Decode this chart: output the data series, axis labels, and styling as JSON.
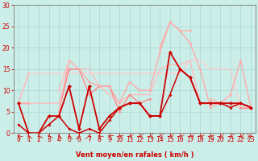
{
  "xlabel": "Vent moyen/en rafales ( km/h )",
  "xlim": [
    -0.5,
    23.5
  ],
  "ylim": [
    0,
    30
  ],
  "yticks": [
    0,
    5,
    10,
    15,
    20,
    25,
    30
  ],
  "xticks": [
    0,
    1,
    2,
    3,
    4,
    5,
    6,
    7,
    8,
    9,
    10,
    11,
    12,
    13,
    14,
    15,
    16,
    17,
    18,
    19,
    20,
    21,
    22,
    23
  ],
  "background_color": "#cceee8",
  "grid_color": "#aaddda",
  "series": [
    {
      "y": [
        7,
        0,
        0,
        4,
        4,
        11,
        1,
        11,
        1,
        4,
        6,
        7,
        7,
        4,
        4,
        19,
        15,
        13,
        7,
        7,
        7,
        7,
        7,
        6
      ],
      "color": "#cc0000",
      "lw": 1.3,
      "marker": "D",
      "ms": 2.5,
      "zorder": 5
    },
    {
      "y": [
        2,
        0,
        0,
        2,
        4,
        1,
        0,
        1,
        0,
        3,
        6,
        7,
        7,
        4,
        4,
        9,
        15,
        13,
        7,
        7,
        7,
        6,
        7,
        6
      ],
      "color": "#cc0000",
      "lw": 1.1,
      "marker": "D",
      "ms": 2.0,
      "zorder": 4
    },
    {
      "y": [
        7,
        7,
        null,
        null,
        5,
        15,
        15,
        9,
        11,
        11,
        5,
        9,
        7,
        8,
        null,
        null,
        null,
        null,
        null,
        7,
        7,
        null,
        6,
        6
      ],
      "color": "#ff8888",
      "lw": 1.0,
      "marker": "o",
      "ms": 2.0,
      "zorder": 3
    },
    {
      "y": [
        7,
        7,
        null,
        null,
        5,
        17,
        15,
        12,
        11,
        11,
        7,
        12,
        10,
        10,
        19,
        26,
        24,
        24,
        null,
        8,
        7,
        null,
        7,
        6
      ],
      "color": "#ffaaaa",
      "lw": 1.0,
      "marker": "o",
      "ms": 2.0,
      "zorder": 3
    },
    {
      "y": [
        7,
        14,
        null,
        null,
        10,
        17,
        null,
        null,
        null,
        null,
        null,
        null,
        null,
        null,
        null,
        null,
        null,
        null,
        null,
        null,
        null,
        null,
        null,
        null
      ],
      "color": "#ffbbbb",
      "lw": 1.0,
      "marker": "o",
      "ms": 2.0,
      "zorder": 3
    },
    {
      "y": [
        null,
        null,
        null,
        null,
        null,
        null,
        null,
        null,
        null,
        null,
        null,
        null,
        null,
        null,
        20,
        26,
        24,
        21,
        15,
        6,
        7,
        9,
        17,
        6
      ],
      "color": "#ffaaaa",
      "lw": 1.0,
      "marker": "o",
      "ms": 2.0,
      "zorder": 3
    },
    {
      "y": [
        7,
        14,
        14,
        14,
        14,
        14,
        14,
        14,
        14,
        14,
        14,
        14,
        14,
        14,
        14,
        14,
        14,
        17,
        17,
        15,
        15,
        15,
        6,
        6
      ],
      "color": "#ffcccc",
      "lw": 0.9,
      "marker": null,
      "ms": 0,
      "zorder": 2
    },
    {
      "y": [
        7,
        7,
        7,
        7,
        7,
        15,
        15,
        15,
        11,
        9,
        7,
        9,
        9,
        9,
        15,
        16,
        16,
        17,
        7,
        7,
        7,
        7,
        6,
        6
      ],
      "color": "#ffbbbb",
      "lw": 0.9,
      "marker": null,
      "ms": 0,
      "zorder": 2
    }
  ],
  "xlabel_color": "#cc0000",
  "tick_color": "#cc0000",
  "axis_color": "#888888",
  "wind_arrow_angles": [
    225,
    200,
    210,
    210,
    195,
    195,
    170,
    165,
    225,
    245,
    250,
    260,
    270,
    280,
    270,
    260,
    255,
    255,
    250,
    250,
    270,
    270,
    270,
    90
  ]
}
